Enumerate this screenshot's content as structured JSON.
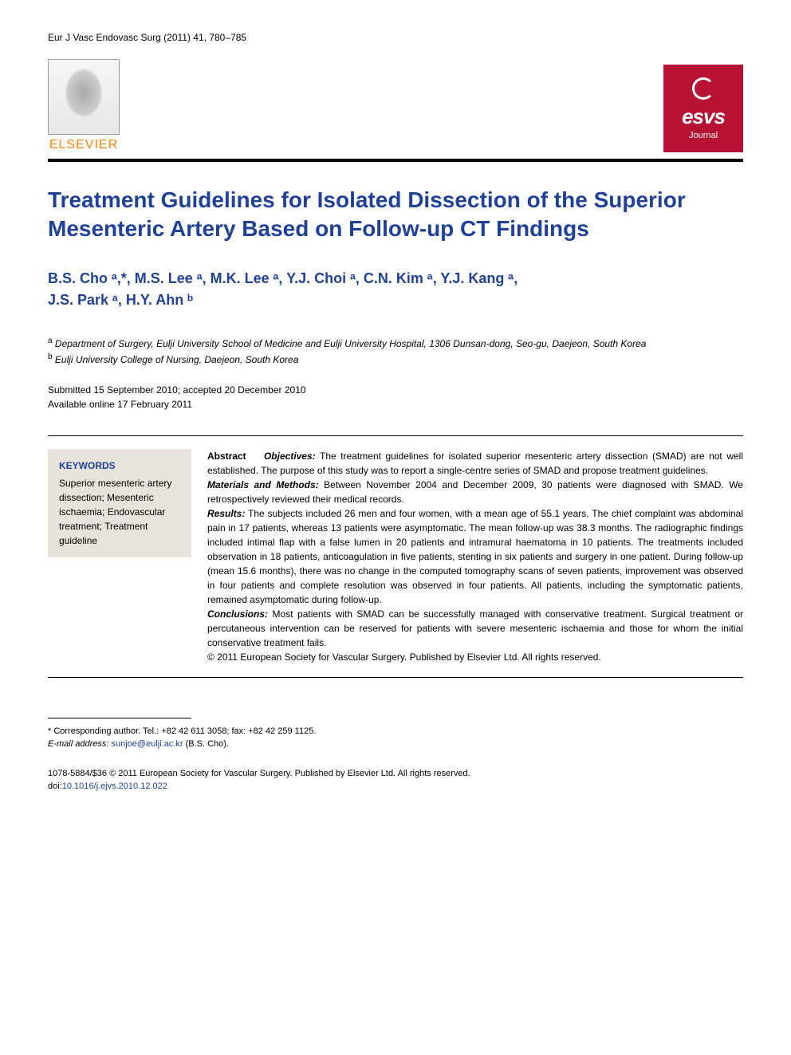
{
  "journal_citation": "Eur J Vasc Endovasc Surg (2011) 41, 780–785",
  "publisher_logo_text": "ELSEVIER",
  "society_logo": {
    "name": "esvs",
    "subtitle": "Journal"
  },
  "title": "Treatment Guidelines for Isolated Dissection of the Superior Mesenteric Artery Based on Follow-up CT Findings",
  "authors_line1": "B.S. Cho ᵃ,*, M.S. Lee ᵃ, M.K. Lee ᵃ, Y.J. Choi ᵃ, C.N. Kim ᵃ, Y.J. Kang ᵃ,",
  "authors_line2": "J.S. Park ᵃ, H.Y. Ahn ᵇ",
  "affiliations": {
    "a": "Department of Surgery, Eulji University School of Medicine and Eulji University Hospital, 1306 Dunsan-dong, Seo-gu, Daejeon, South Korea",
    "b": "Eulji University College of Nursing, Daejeon, South Korea"
  },
  "dates": {
    "submitted_accepted": "Submitted 15 September 2010; accepted 20 December 2010",
    "online": "Available online 17 February 2011"
  },
  "keywords_heading": "KEYWORDS",
  "keywords": "Superior mesenteric artery dissection; Mesenteric ischaemia; Endovascular treatment; Treatment guideline",
  "abstract": {
    "label": "Abstract",
    "objectives_label": "Objectives:",
    "objectives": "The treatment guidelines for isolated superior mesenteric artery dissection (SMAD) are not well established. The purpose of this study was to report a single-centre series of SMAD and propose treatment guidelines.",
    "methods_label": "Materials and Methods:",
    "methods": "Between November 2004 and December 2009, 30 patients were diagnosed with SMAD. We retrospectively reviewed their medical records.",
    "results_label": "Results:",
    "results": "The subjects included 26 men and four women, with a mean age of 55.1 years. The chief complaint was abdominal pain in 17 patients, whereas 13 patients were asymptomatic. The mean follow-up was 38.3 months. The radiographic findings included intimal flap with a false lumen in 20 patients and intramural haematoma in 10 patients. The treatments included observation in 18 patients, anticoagulation in five patients, stenting in six patients and surgery in one patient. During follow-up (mean 15.6 months), there was no change in the computed tomography scans of seven patients, improvement was observed in four patients and complete resolution was observed in four patients. All patients, including the symptomatic patients, remained asymptomatic during follow-up.",
    "conclusions_label": "Conclusions:",
    "conclusions": "Most patients with SMAD can be successfully managed with conservative treatment. Surgical treatment or percutaneous intervention can be reserved for patients with severe mesenteric ischaemia and those for whom the initial conservative treatment fails.",
    "copyright": "© 2011 European Society for Vascular Surgery. Published by Elsevier Ltd. All rights reserved."
  },
  "corresponding": {
    "line": "* Corresponding author. Tel.: +82 42 611 3058; fax: +82 42 259 1125.",
    "email_label": "E-mail address:",
    "email": "sunjoe@eulji.ac.kr",
    "email_suffix": "(B.S. Cho)."
  },
  "footer": {
    "copyright": "1078-5884/$36 © 2011 European Society for Vascular Surgery. Published by Elsevier Ltd. All rights reserved.",
    "doi_label": "doi:",
    "doi": "10.1016/j.ejvs.2010.12.022"
  },
  "colors": {
    "title_blue": "#20419a",
    "elsevier_orange": "#ff8200",
    "esvs_red": "#b71234",
    "keywords_bg": "#e8e4dc"
  }
}
